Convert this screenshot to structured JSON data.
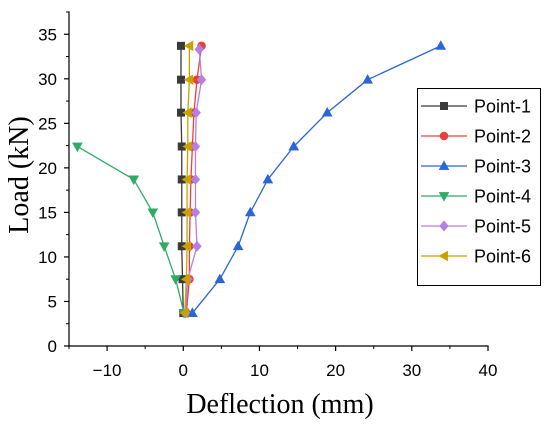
{
  "chart_data": {
    "type": "line",
    "xlabel": "Deflection (mm)",
    "ylabel": "Load (kN)",
    "xlim": [
      -15,
      40
    ],
    "ylim": [
      0,
      37.5
    ],
    "xticks": [
      -10,
      0,
      10,
      20,
      30,
      40
    ],
    "xtick_labels": [
      "−10",
      "0",
      "10",
      "20",
      "30",
      "40"
    ],
    "yticks": [
      0,
      5,
      10,
      15,
      20,
      25,
      30,
      35
    ],
    "ytick_labels": [
      "0",
      "5",
      "10",
      "15",
      "20",
      "25",
      "30",
      "35"
    ],
    "grid": false,
    "legend": "center-right",
    "series": [
      {
        "name": "Point-1",
        "color": "#3a3a3a",
        "marker": "square",
        "x": [
          0.0,
          -0.1,
          -0.2,
          -0.2,
          -0.2,
          -0.2,
          -0.3,
          -0.3,
          -0.3
        ],
        "y": [
          3.7,
          7.5,
          11.2,
          15.0,
          18.7,
          22.4,
          26.2,
          29.9,
          33.7
        ]
      },
      {
        "name": "Point-2",
        "color": "#e8413a",
        "marker": "circle",
        "x": [
          0.4,
          0.8,
          0.8,
          0.9,
          1.0,
          1.2,
          1.4,
          1.8,
          2.4
        ],
        "y": [
          3.7,
          7.5,
          11.2,
          15.0,
          18.7,
          22.4,
          26.2,
          29.9,
          33.7
        ]
      },
      {
        "name": "Point-3",
        "color": "#2a66d8",
        "marker": "triangle-up",
        "x": [
          1.2,
          4.8,
          7.2,
          8.8,
          11.1,
          14.5,
          18.9,
          24.2,
          33.8
        ],
        "y": [
          3.7,
          7.5,
          11.2,
          15.0,
          18.7,
          22.4,
          26.2,
          29.9,
          33.7
        ]
      },
      {
        "name": "Point-4",
        "color": "#2eac67",
        "marker": "triangle-down",
        "x": [
          0.1,
          -1.0,
          -2.5,
          -4.0,
          -6.5,
          -13.9
        ],
        "y": [
          3.7,
          7.5,
          11.2,
          15.0,
          18.7,
          22.4
        ]
      },
      {
        "name": "Point-5",
        "color": "#b77ee6",
        "marker": "diamond",
        "x": [
          0.3,
          0.6,
          1.8,
          1.6,
          1.6,
          1.6,
          1.7,
          2.4,
          2.1
        ],
        "y": [
          3.7,
          7.5,
          11.2,
          15.0,
          18.7,
          22.4,
          26.2,
          29.9,
          33.3
        ]
      },
      {
        "name": "Point-6",
        "color": "#c9a200",
        "marker": "triangle-left",
        "x": [
          0.2,
          0.4,
          0.5,
          0.5,
          0.5,
          0.6,
          0.6,
          0.8,
          0.8
        ],
        "y": [
          3.7,
          7.5,
          11.2,
          15.0,
          18.7,
          22.4,
          26.2,
          29.9,
          33.7
        ]
      }
    ]
  }
}
